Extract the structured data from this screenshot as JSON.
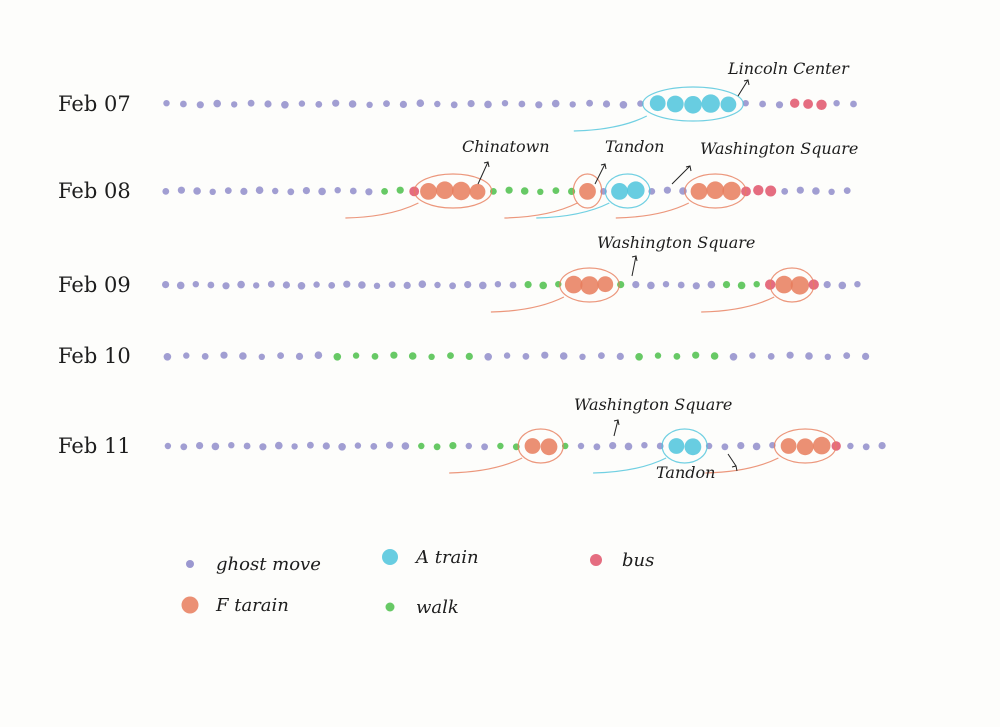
{
  "colors": {
    "ghost": "#8a86c8",
    "a_train": "#4dc4dc",
    "bus": "#e0536a",
    "f_train": "#e77d5c",
    "walk": "#4cbf4a"
  },
  "rows": [
    {
      "date": "Feb 07",
      "segments": [
        {
          "mode": "ghost",
          "count": 29,
          "size": "s"
        },
        {
          "mode": "a_train",
          "count": 5,
          "size": "l"
        },
        {
          "mode": "ghost",
          "count": 3,
          "size": "s"
        },
        {
          "mode": "bus",
          "count": 3,
          "size": "m"
        },
        {
          "mode": "ghost",
          "count": 2,
          "size": "s"
        }
      ],
      "places": [
        {
          "name": "Lincoln Center"
        }
      ]
    },
    {
      "date": "Feb 08",
      "segments": [
        {
          "mode": "ghost",
          "count": 14,
          "size": "s"
        },
        {
          "mode": "walk",
          "count": 2,
          "size": "s"
        },
        {
          "mode": "bus",
          "count": 1,
          "size": "m"
        },
        {
          "mode": "f_train",
          "count": 4,
          "size": "l"
        },
        {
          "mode": "walk",
          "count": 6,
          "size": "s"
        },
        {
          "mode": "f_train",
          "count": 1,
          "size": "l"
        },
        {
          "mode": "ghost",
          "count": 1,
          "size": "s"
        },
        {
          "mode": "a_train",
          "count": 2,
          "size": "l"
        },
        {
          "mode": "ghost",
          "count": 3,
          "size": "s"
        },
        {
          "mode": "f_train",
          "count": 3,
          "size": "l"
        },
        {
          "mode": "bus",
          "count": 3,
          "size": "m"
        },
        {
          "mode": "ghost",
          "count": 5,
          "size": "s"
        }
      ],
      "places": [
        {
          "name": "Chinatown"
        },
        {
          "name": "Tandon"
        },
        {
          "name": "Washington Square"
        }
      ]
    },
    {
      "date": "Feb 09",
      "segments": [
        {
          "mode": "ghost",
          "count": 24,
          "size": "s"
        },
        {
          "mode": "walk",
          "count": 3,
          "size": "s"
        },
        {
          "mode": "f_train",
          "count": 3,
          "size": "l"
        },
        {
          "mode": "walk",
          "count": 1,
          "size": "s"
        },
        {
          "mode": "ghost",
          "count": 6,
          "size": "s"
        },
        {
          "mode": "walk",
          "count": 3,
          "size": "s"
        },
        {
          "mode": "bus",
          "count": 1,
          "size": "m"
        },
        {
          "mode": "f_train",
          "count": 2,
          "size": "l"
        },
        {
          "mode": "bus",
          "count": 1,
          "size": "m"
        },
        {
          "mode": "ghost",
          "count": 3,
          "size": "s"
        }
      ],
      "places": [
        {
          "name": "Washington Square"
        }
      ]
    },
    {
      "date": "Feb 10",
      "segments": [
        {
          "mode": "ghost",
          "count": 9,
          "size": "s"
        },
        {
          "mode": "walk",
          "count": 8,
          "size": "s"
        },
        {
          "mode": "ghost",
          "count": 8,
          "size": "s"
        },
        {
          "mode": "walk",
          "count": 5,
          "size": "s"
        },
        {
          "mode": "ghost",
          "count": 8,
          "size": "s"
        }
      ],
      "places": []
    },
    {
      "date": "Feb 11",
      "segments": [
        {
          "mode": "ghost",
          "count": 16,
          "size": "s"
        },
        {
          "mode": "walk",
          "count": 3,
          "size": "s"
        },
        {
          "mode": "ghost",
          "count": 2,
          "size": "s"
        },
        {
          "mode": "walk",
          "count": 2,
          "size": "s"
        },
        {
          "mode": "f_train",
          "count": 2,
          "size": "l"
        },
        {
          "mode": "walk",
          "count": 1,
          "size": "s"
        },
        {
          "mode": "ghost",
          "count": 6,
          "size": "s"
        },
        {
          "mode": "a_train",
          "count": 2,
          "size": "l"
        },
        {
          "mode": "ghost",
          "count": 5,
          "size": "s"
        },
        {
          "mode": "f_train",
          "count": 3,
          "size": "l"
        },
        {
          "mode": "bus",
          "count": 1,
          "size": "m"
        },
        {
          "mode": "ghost",
          "count": 3,
          "size": "s"
        }
      ],
      "places": [
        {
          "name": "Washington Square"
        },
        {
          "name": "Tandon"
        }
      ]
    }
  ],
  "legend": [
    {
      "mode": "ghost",
      "label": "ghost move"
    },
    {
      "mode": "a_train",
      "label": "A train"
    },
    {
      "mode": "bus",
      "label": "bus"
    },
    {
      "mode": "f_train",
      "label": "F tarain"
    },
    {
      "mode": "walk",
      "label": "walk"
    }
  ]
}
